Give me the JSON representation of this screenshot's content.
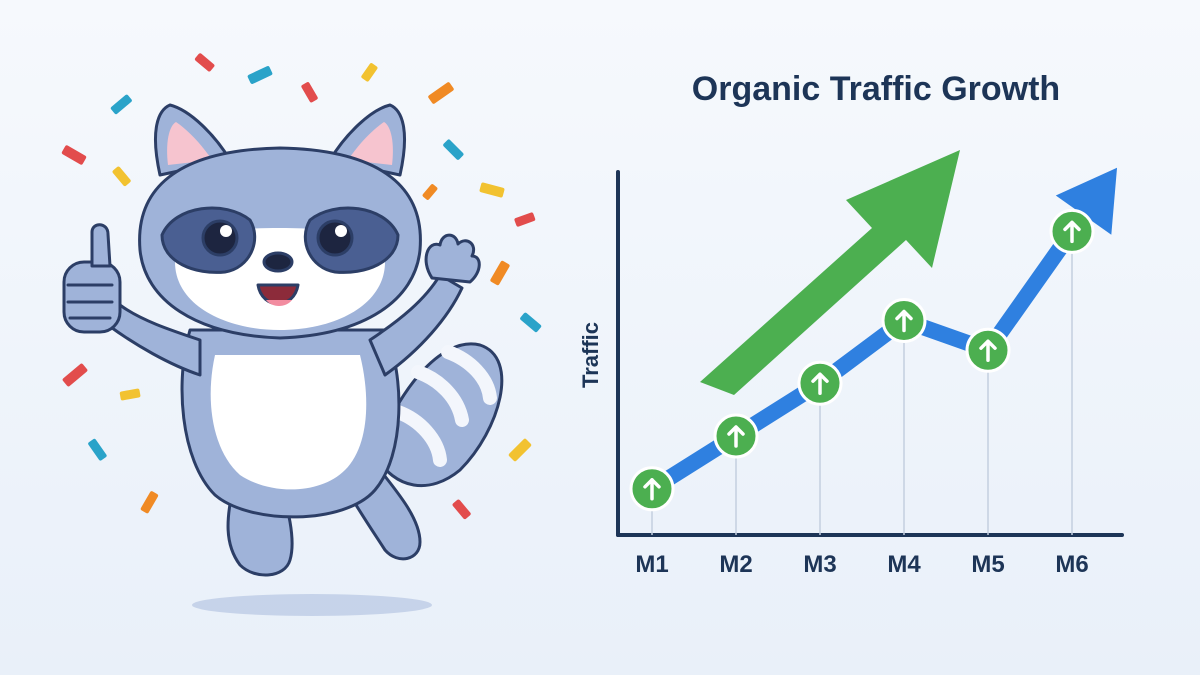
{
  "colors": {
    "accent_green": "#4caf50",
    "accent_blue": "#2f80e0",
    "axis": "#1d3557",
    "raccoon_fur": "#9fb3d9",
    "raccoon_mask": "#4a5f92"
  },
  "illustration": {
    "subject": "cheering-raccoon-mascot",
    "decoration": "confetti"
  },
  "chart_data": {
    "type": "line",
    "title": "Organic Traffic Growth",
    "xlabel": "",
    "ylabel": "Traffic",
    "categories": [
      "M1",
      "M2",
      "M3",
      "M4",
      "M5",
      "M6"
    ],
    "series": [
      {
        "values": [
          14,
          30,
          46,
          65,
          56,
          92
        ]
      }
    ],
    "ylim": [
      0,
      110
    ],
    "grid": false,
    "legend": "none",
    "markers": "green-circle-up-arrow",
    "annotations": [
      "large green up-trend arrow",
      "blue arrowhead at end of line"
    ]
  }
}
